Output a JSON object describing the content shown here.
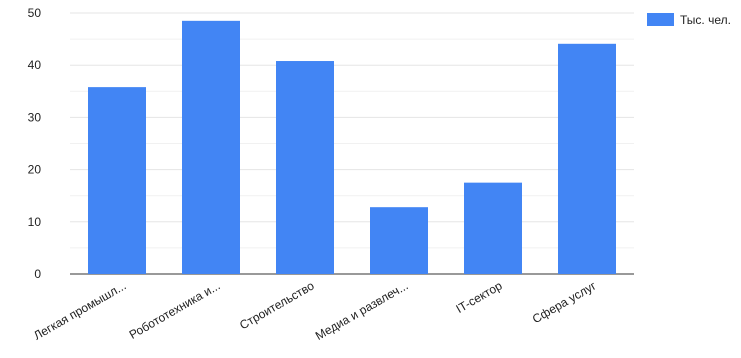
{
  "chart_data": {
    "type": "bar",
    "categories": [
      "Легкая промышл...",
      "Робототехника и...",
      "Строительство",
      "Медиа и развлеч...",
      "IT-сектор",
      "Сфера услуг"
    ],
    "series": [
      {
        "name": "Тыс. чел.",
        "values": [
          35.8,
          48.5,
          40.8,
          12.8,
          17.5,
          44.1
        ]
      }
    ],
    "ylim": [
      0,
      50
    ],
    "yticks": [
      0,
      10,
      20,
      30,
      40,
      50
    ],
    "grid": true,
    "legend_position": "top-right",
    "colors": {
      "bar": "#4285f4",
      "grid": "#e5e5e5",
      "axis": "#333333",
      "text": "#222222"
    }
  }
}
